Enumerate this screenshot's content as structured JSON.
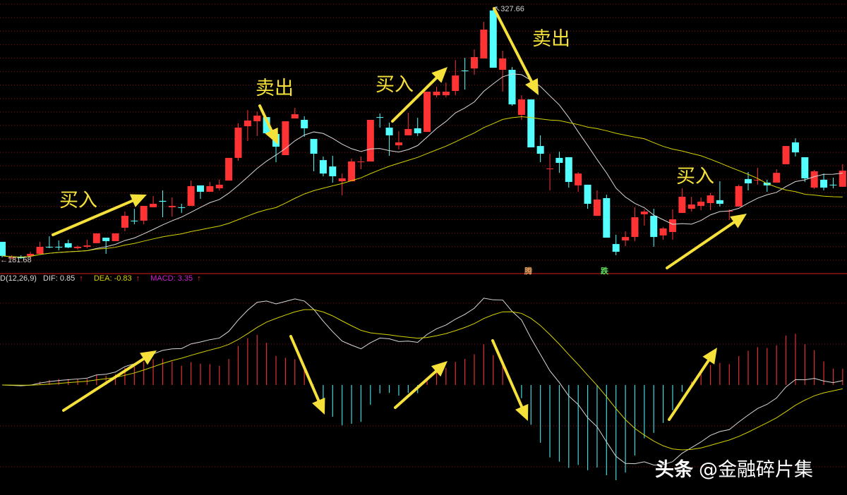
{
  "chart_data": {
    "type": "candlestick",
    "candle_format": [
      "open",
      "close",
      "high",
      "low"
    ],
    "colors": {
      "up": "#ff3333",
      "down": "#54ffff",
      "ma_short": "#d8d8d8",
      "ma_long": "#d6d200",
      "dif": "#d8d8d8",
      "dea": "#d6d200",
      "grid": "#8a1010",
      "annotation": "#f5e13a"
    },
    "high_label": "327.66",
    "low_label": "181.68",
    "candles": [
      [
        192.0,
        183.8,
        192.0,
        182.9
      ],
      [
        182.5,
        182.9,
        184.2,
        181.68
      ],
      [
        183.4,
        182.5,
        184.2,
        182.1
      ],
      [
        183.8,
        185.0,
        186.2,
        182.1
      ],
      [
        185.0,
        189.1,
        192.0,
        185.0
      ],
      [
        189.1,
        188.7,
        195.2,
        188.3
      ],
      [
        189.1,
        188.7,
        192.8,
        187.0
      ],
      [
        191.2,
        188.7,
        193.2,
        188.3
      ],
      [
        188.3,
        189.1,
        189.9,
        187.5
      ],
      [
        189.1,
        189.9,
        193.2,
        188.3
      ],
      [
        191.2,
        196.9,
        196.9,
        191.2
      ],
      [
        194.4,
        192.4,
        194.4,
        185.0
      ],
      [
        192.4,
        196.9,
        196.9,
        192.4
      ],
      [
        200.2,
        207.1,
        209.6,
        198.1
      ],
      [
        204.3,
        203.9,
        211.2,
        202.2
      ],
      [
        204.3,
        212.9,
        212.9,
        202.2
      ],
      [
        212.1,
        214.1,
        218.6,
        212.1
      ],
      [
        215.8,
        215.3,
        221.9,
        206.3
      ],
      [
        212.1,
        212.9,
        217.8,
        206.7
      ],
      [
        212.1,
        211.7,
        214.1,
        208.8
      ],
      [
        212.9,
        224.4,
        227.6,
        212.9
      ],
      [
        224.8,
        221.1,
        224.8,
        217.0
      ],
      [
        221.1,
        224.4,
        226.8,
        221.1
      ],
      [
        223.1,
        225.2,
        228.1,
        221.9
      ],
      [
        227.6,
        240.8,
        240.8,
        227.6
      ],
      [
        240.8,
        258.4,
        260.9,
        239.1
      ],
      [
        259.2,
        262.5,
        268.6,
        250.6
      ],
      [
        262.1,
        265.4,
        267.8,
        253.5
      ],
      [
        264.5,
        255.1,
        264.5,
        255.1
      ],
      [
        254.7,
        247.3,
        254.7,
        238.3
      ],
      [
        242.4,
        262.1,
        262.1,
        242.4
      ],
      [
        263.7,
        266.2,
        269.9,
        263.7
      ],
      [
        262.9,
        258.0,
        265.0,
        253.1
      ],
      [
        251.8,
        243.2,
        251.8,
        233.0
      ],
      [
        239.5,
        231.7,
        241.6,
        230.1
      ],
      [
        235.8,
        230.1,
        242.0,
        226.4
      ],
      [
        227.2,
        228.9,
        231.7,
        219.0
      ],
      [
        227.2,
        238.7,
        240.4,
        227.2
      ],
      [
        238.3,
        238.7,
        241.6,
        234.2
      ],
      [
        238.7,
        262.9,
        262.9,
        238.7
      ],
      [
        264.5,
        264.1,
        266.6,
        258.4
      ],
      [
        258.4,
        253.9,
        261.3,
        242.0
      ],
      [
        248.1,
        249.8,
        256.3,
        245.7
      ],
      [
        253.9,
        257.6,
        267.0,
        253.9
      ],
      [
        258.0,
        255.1,
        264.1,
        253.5
      ],
      [
        255.9,
        279.3,
        279.3,
        255.9
      ],
      [
        277.2,
        279.3,
        282.2,
        276.0
      ],
      [
        277.2,
        279.3,
        284.6,
        276.0
      ],
      [
        279.7,
        288.7,
        297.7,
        277.2
      ],
      [
        291.6,
        291.2,
        299.0,
        280.5
      ],
      [
        292.8,
        299.4,
        303.9,
        289.1
      ],
      [
        298.6,
        315.4,
        319.9,
        298.6
      ],
      [
        326.5,
        293.2,
        327.66,
        293.2
      ],
      [
        292.0,
        298.6,
        303.1,
        279.3
      ],
      [
        292.0,
        271.9,
        293.6,
        271.1
      ],
      [
        265.8,
        274.8,
        277.2,
        262.9
      ],
      [
        274.8,
        246.9,
        274.8,
        246.9
      ],
      [
        247.7,
        243.2,
        253.9,
        238.3
      ],
      [
        234.2,
        234.6,
        243.2,
        221.9
      ],
      [
        240.8,
        237.9,
        244.4,
        232.1
      ],
      [
        241.2,
        226.8,
        241.2,
        223.5
      ],
      [
        224.8,
        231.7,
        232.5,
        221.1
      ],
      [
        225.2,
        214.1,
        225.2,
        211.2
      ],
      [
        207.1,
        216.6,
        221.9,
        207.1
      ],
      [
        217.4,
        194.4,
        219.4,
        194.4
      ],
      [
        190.7,
        186.2,
        196.1,
        184.2
      ],
      [
        192.8,
        194.8,
        198.1,
        189.5
      ],
      [
        194.8,
        206.3,
        212.1,
        192.4
      ],
      [
        208.0,
        209.6,
        210.8,
        201.4
      ],
      [
        207.1,
        194.8,
        211.2,
        189.1
      ],
      [
        195.7,
        199.8,
        200.6,
        193.2
      ],
      [
        197.7,
        205.1,
        210.8,
        193.2
      ],
      [
        208.8,
        218.2,
        223.1,
        208.8
      ],
      [
        211.2,
        213.7,
        218.2,
        209.6
      ],
      [
        212.9,
        215.3,
        217.8,
        210.4
      ],
      [
        214.5,
        219.0,
        220.3,
        210.4
      ],
      [
        216.2,
        214.1,
        227.2,
        212.5
      ],
      [
        209.6,
        210.0,
        210.8,
        204.7
      ],
      [
        212.5,
        224.4,
        225.2,
        212.5
      ],
      [
        228.5,
        226.0,
        232.6,
        221.9
      ],
      [
        227.6,
        228.0,
        235.0,
        225.2
      ],
      [
        226.4,
        224.8,
        228.1,
        221.1
      ],
      [
        226.4,
        232.1,
        234.2,
        226.4
      ],
      [
        237.1,
        247.7,
        247.7,
        237.1
      ],
      [
        249.8,
        244.0,
        252.2,
        241.6
      ],
      [
        241.2,
        228.9,
        241.2,
        226.8
      ],
      [
        223.5,
        233.0,
        233.8,
        222.7
      ],
      [
        228.1,
        223.5,
        231.7,
        221.9
      ],
      [
        225.2,
        224.8,
        229.3,
        223.1
      ],
      [
        224.0,
        233.4,
        237.1,
        224.0
      ]
    ],
    "macd": {
      "params_label": "D(12,26,9)",
      "dif_label": "DIF: 0.85",
      "dea_label": "DEA: -0.83",
      "macd_label": "MACD: 3.35",
      "up_arrow": "↑"
    },
    "markers": [
      {
        "text": "腾",
        "candle": 55,
        "color": "#e8a060"
      },
      {
        "text": "跌",
        "candle": 63,
        "color": "#5fe05f"
      }
    ],
    "annotations": [
      {
        "text": "买入",
        "panel": "price"
      },
      {
        "text": "卖出",
        "panel": "price"
      },
      {
        "text": "买入",
        "panel": "price"
      },
      {
        "text": "卖出",
        "panel": "price"
      },
      {
        "text": "买入",
        "panel": "price"
      }
    ]
  },
  "watermark": {
    "platform": "头条",
    "account": "@金融碎片集"
  }
}
